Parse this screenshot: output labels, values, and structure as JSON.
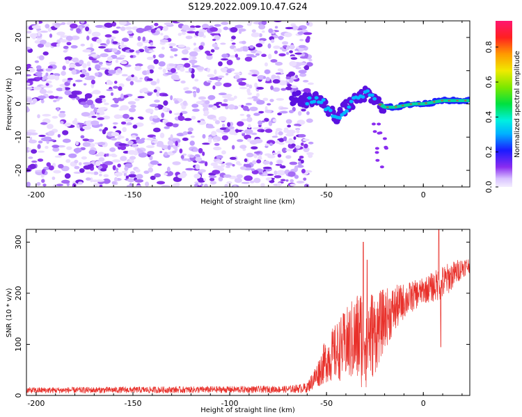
{
  "title": "S129.2022.009.10.47.G24",
  "chart_data": [
    {
      "type": "heatmap",
      "xlabel": "Height of straight line (km)",
      "ylabel": "Frequency (Hz)",
      "xlim": [
        -205,
        24
      ],
      "ylim": [
        -25,
        25
      ],
      "x_ticks": [
        -200,
        -150,
        -100,
        -50,
        0
      ],
      "y_ticks": [
        -20,
        -10,
        0,
        10,
        20
      ],
      "colorbar": {
        "label": "Normalized spectral amplitude",
        "range": [
          0,
          0.95
        ],
        "ticks": [
          0.0,
          0.2,
          0.4,
          0.6,
          0.8
        ]
      },
      "ridge": [
        {
          "x": -67,
          "y": 2
        },
        {
          "x": -60,
          "y": 1
        },
        {
          "x": -55,
          "y": 2
        },
        {
          "x": -50,
          "y": -1
        },
        {
          "x": -45,
          "y": -4
        },
        {
          "x": -40,
          "y": -1
        },
        {
          "x": -35,
          "y": 1
        },
        {
          "x": -30,
          "y": 3
        },
        {
          "x": -25,
          "y": 1
        },
        {
          "x": -20,
          "y": -1
        },
        {
          "x": -15,
          "y": -1
        },
        {
          "x": -10,
          "y": -0.5
        },
        {
          "x": -5,
          "y": 0
        },
        {
          "x": 0,
          "y": 0
        },
        {
          "x": 10,
          "y": 1
        },
        {
          "x": 20,
          "y": 1
        }
      ]
    },
    {
      "type": "line",
      "xlabel": "Height of straight line (km)",
      "ylabel": "SNR (10 * v/v)",
      "xlim": [
        -205,
        24
      ],
      "ylim": [
        0,
        325
      ],
      "x_ticks": [
        -200,
        -150,
        -100,
        -50,
        0
      ],
      "y_ticks": [
        0,
        100,
        200,
        300
      ],
      "color": "#e8302a",
      "envelope": [
        {
          "x": -205,
          "mean": 10,
          "amp": 6
        },
        {
          "x": -70,
          "mean": 12,
          "amp": 7
        },
        {
          "x": -60,
          "mean": 15,
          "amp": 10
        },
        {
          "x": -55,
          "mean": 40,
          "amp": 25
        },
        {
          "x": -50,
          "mean": 70,
          "amp": 45
        },
        {
          "x": -40,
          "mean": 100,
          "amp": 70
        },
        {
          "x": -30,
          "mean": 120,
          "amp": 110
        },
        {
          "x": -25,
          "mean": 120,
          "amp": 80
        },
        {
          "x": -20,
          "mean": 150,
          "amp": 60
        },
        {
          "x": -10,
          "mean": 185,
          "amp": 35
        },
        {
          "x": 0,
          "mean": 205,
          "amp": 25
        },
        {
          "x": 10,
          "mean": 220,
          "amp": 35
        },
        {
          "x": 20,
          "mean": 250,
          "amp": 20
        },
        {
          "x": 24,
          "mean": 255,
          "amp": 15
        }
      ],
      "peaks": [
        {
          "x": -31,
          "y": 300
        },
        {
          "x": -29,
          "y": 265
        },
        {
          "x": 8,
          "y": 325
        },
        {
          "x": 9,
          "y": 95
        }
      ]
    }
  ]
}
